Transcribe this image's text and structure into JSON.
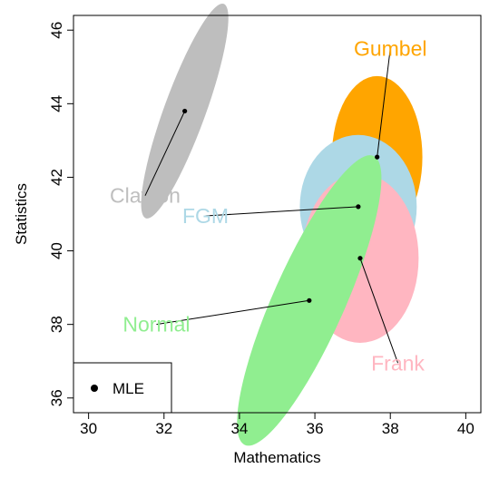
{
  "chart_data": {
    "type": "scatter",
    "title": "",
    "xlabel": "Mathematics",
    "ylabel": "Statistics",
    "xlim": [
      29.6,
      40.4
    ],
    "ylim": [
      35.6,
      46.4
    ],
    "xticks": [
      "30",
      "32",
      "34",
      "36",
      "38",
      "40"
    ],
    "yticks": [
      "36",
      "38",
      "40",
      "42",
      "44",
      "46"
    ],
    "grid": false,
    "legend": {
      "position": "bottom-left",
      "entries": [
        {
          "label": "MLE",
          "marker": "filled-circle"
        }
      ]
    },
    "series": [
      {
        "name": "Gumbel",
        "color": "#FFA500",
        "mle": [
          37.65,
          42.55
        ],
        "region": {
          "center": [
            37.65,
            42.55
          ],
          "rx": 1.2,
          "ry": 2.2,
          "angle": 0
        },
        "label_at": [
          38.0,
          45.5
        ]
      },
      {
        "name": "FGM",
        "color": "#ADD8E6",
        "mle": [
          37.15,
          41.2
        ],
        "region": {
          "center": [
            37.15,
            41.2
          ],
          "rx": 1.55,
          "ry": 1.95,
          "angle": 0
        },
        "label_at": [
          33.1,
          40.95
        ]
      },
      {
        "name": "Frank",
        "color": "#FFB6C1",
        "mle": [
          37.2,
          39.8
        ],
        "region": {
          "center": [
            37.2,
            39.8
          ],
          "rx": 1.55,
          "ry": 2.3,
          "angle": 0
        },
        "label_at": [
          38.2,
          36.95
        ]
      },
      {
        "name": "Normal",
        "color": "#90EE90",
        "mle": [
          35.85,
          38.65
        ],
        "region": {
          "center": [
            35.85,
            38.65
          ],
          "rx": 0.95,
          "ry": 4.3,
          "angle": 24
        },
        "label_at": [
          31.8,
          38.0
        ]
      },
      {
        "name": "Clayton",
        "color": "#BEBEBE",
        "mle": [
          32.55,
          43.8
        ],
        "region": {
          "center": [
            32.55,
            43.8
          ],
          "rx": 0.55,
          "ry": 3.1,
          "angle": 20
        },
        "label_at": [
          31.5,
          41.5
        ]
      }
    ]
  }
}
